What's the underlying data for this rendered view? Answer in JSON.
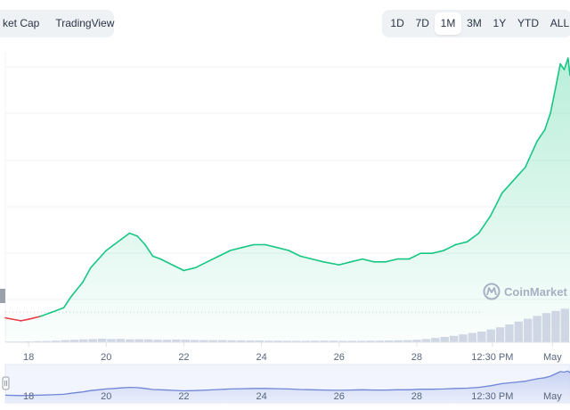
{
  "toolbar": {
    "chart_types": [
      {
        "label": "ket Cap",
        "active": false
      },
      {
        "label": "TradingView",
        "active": false
      }
    ],
    "ranges": [
      {
        "label": "1D",
        "active": false
      },
      {
        "label": "7D",
        "active": false
      },
      {
        "label": "1M",
        "active": true
      },
      {
        "label": "3M",
        "active": false
      },
      {
        "label": "1Y",
        "active": false
      },
      {
        "label": "YTD",
        "active": false
      },
      {
        "label": "ALL",
        "active": false
      }
    ]
  },
  "watermark": "CoinMarket",
  "colors": {
    "up": "#16c784",
    "down": "#ea3943",
    "navigator": "#6f86d6"
  },
  "chart_data": {
    "type": "area",
    "x_tick_labels": [
      "18",
      "20",
      "22",
      "24",
      "26",
      "28",
      "12:30 PM",
      "May"
    ],
    "x_ticks": [
      17,
      19,
      21,
      23,
      25,
      27,
      28.95,
      30.5
    ],
    "xlim": [
      16.4,
      30.95
    ],
    "ylim": [
      0,
      100
    ],
    "baseline": 10.5,
    "series": [
      {
        "x": [
          16.4,
          16.8,
          17.0,
          17.3,
          17.6,
          17.9,
          18.1,
          18.4,
          18.6,
          18.8,
          19.0,
          19.2,
          19.4,
          19.6,
          19.8,
          20.0,
          20.2,
          20.4,
          20.7,
          21.0,
          21.3,
          21.6,
          21.9,
          22.2,
          22.5,
          22.8,
          23.1,
          23.4,
          23.7,
          24.0,
          24.3,
          24.6,
          25.0,
          25.3,
          25.6,
          25.9,
          26.2,
          26.5,
          26.8,
          27.1,
          27.4,
          27.7,
          28.0,
          28.3,
          28.6,
          28.9,
          29.2,
          29.4,
          29.6,
          29.8,
          29.9,
          30.0,
          30.1,
          30.2,
          30.3,
          30.45,
          30.6,
          30.7,
          30.8,
          30.9,
          30.95
        ],
        "values": [
          8.5,
          7.5,
          8,
          9,
          10.5,
          12,
          16,
          21,
          26,
          29,
          32,
          34,
          36,
          38,
          37,
          34,
          30,
          29,
          27,
          25,
          26,
          28,
          30,
          32,
          33,
          34,
          34,
          33,
          32,
          30,
          29,
          28,
          27,
          28,
          29,
          28,
          28,
          29,
          29,
          31,
          31,
          32,
          34,
          35,
          38,
          44,
          52,
          55,
          58,
          61,
          64,
          67,
          70,
          72,
          74,
          80,
          90,
          97,
          95,
          99,
          93
        ]
      }
    ],
    "volume": [
      2,
      2,
      2.5,
      3,
      3.5,
      4.5,
      6,
      7,
      8,
      9,
      10,
      9,
      9.5,
      8,
      8.5,
      8,
      7,
      7,
      7.5,
      7,
      6.5,
      6,
      6,
      6,
      5.5,
      5.5,
      5,
      5,
      4.5,
      4.5,
      4,
      4,
      4,
      4.5,
      4.5,
      4.5,
      4,
      4,
      4,
      4.5,
      4.5,
      5,
      5.5,
      6,
      7,
      9,
      12,
      15,
      18,
      22,
      26,
      30,
      36,
      42,
      50,
      58,
      66,
      74,
      82,
      88,
      94
    ]
  }
}
